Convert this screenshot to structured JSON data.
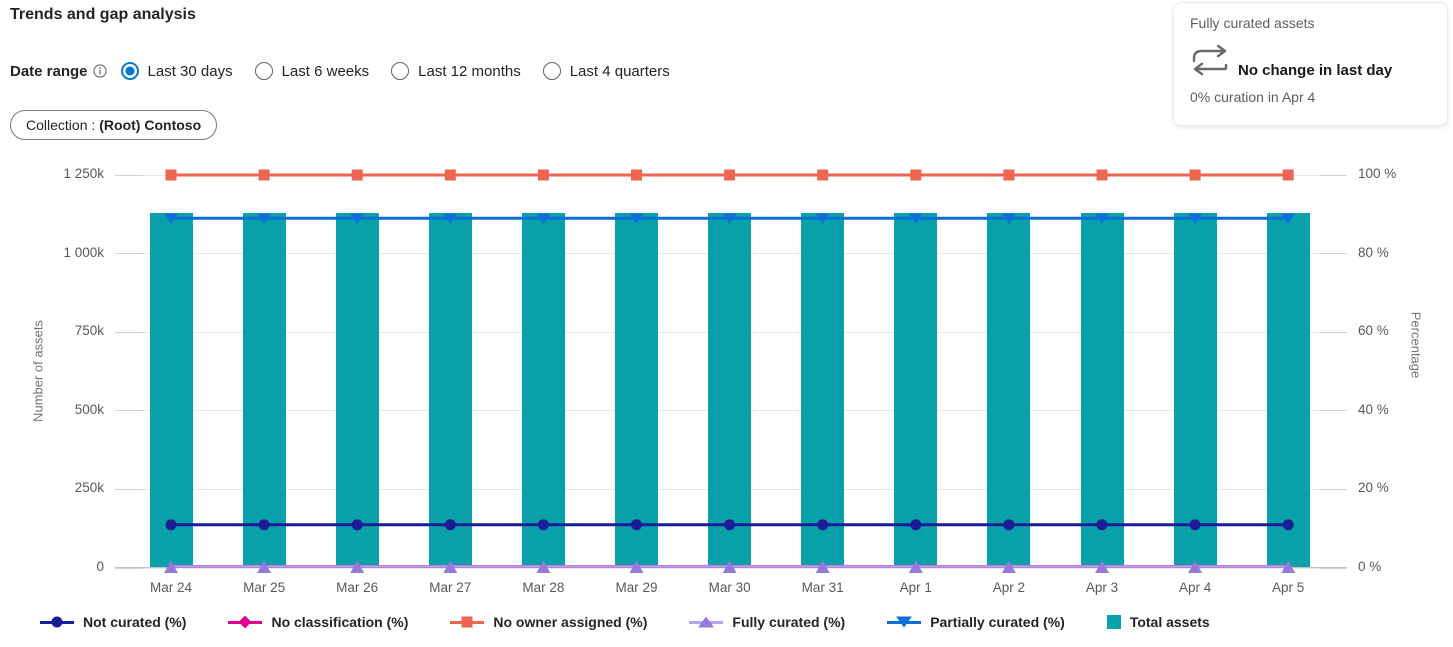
{
  "page": {
    "title": "Trends and gap analysis"
  },
  "date_range": {
    "label": "Date range",
    "info_icon": "info-circle-icon",
    "options": [
      {
        "label": "Last 30 days",
        "selected": true
      },
      {
        "label": "Last 6 weeks",
        "selected": false
      },
      {
        "label": "Last 12 months",
        "selected": false
      },
      {
        "label": "Last 4 quarters",
        "selected": false
      }
    ]
  },
  "filters": {
    "collection_chip": {
      "prefix": "Collection :",
      "value": "(Root) Contoso"
    }
  },
  "summary_card": {
    "title": "Fully curated assets",
    "icon": "swap-arrows-icon",
    "headline": "No change in last day",
    "subtext": "0% curation in Apr 4"
  },
  "chart_data": {
    "type": "bar",
    "subtype": "combo-bar-line",
    "title": "",
    "categories": [
      "Mar 24",
      "Mar 25",
      "Mar 26",
      "Mar 27",
      "Mar 28",
      "Mar 29",
      "Mar 30",
      "Mar 31",
      "Apr 1",
      "Apr 2",
      "Apr 3",
      "Apr 4",
      "Apr 5"
    ],
    "left_axis": {
      "label": "Number of assets",
      "min": 0,
      "max": 1250000,
      "ticks": [
        "1 250k",
        "1 000k",
        "750k",
        "500k",
        "250k",
        "0"
      ]
    },
    "right_axis": {
      "label": "Percentage",
      "min": 0,
      "max": 100,
      "ticks": [
        "100 %",
        "80 %",
        "60 %",
        "40 %",
        "20 %",
        "0 %"
      ]
    },
    "grid": true,
    "legend_position": "bottom",
    "series": [
      {
        "name": "Total assets",
        "type": "bar",
        "axis": "left",
        "color": "#08A1AA",
        "values": [
          1130000,
          1130000,
          1130000,
          1130000,
          1130000,
          1130000,
          1130000,
          1130000,
          1130000,
          1130000,
          1130000,
          1130000,
          1130000
        ]
      },
      {
        "name": "No classification (%)",
        "type": "line",
        "marker": "diamond",
        "axis": "right",
        "color": "#E3008C",
        "occluded": true,
        "values": [
          0,
          0,
          0,
          0,
          0,
          0,
          0,
          0,
          0,
          0,
          0,
          0,
          0
        ]
      },
      {
        "name": "No owner assigned (%)",
        "type": "line",
        "marker": "square",
        "axis": "right",
        "color": "#EE6550",
        "values": [
          100,
          100,
          100,
          100,
          100,
          100,
          100,
          100,
          100,
          100,
          100,
          100,
          100
        ]
      },
      {
        "name": "Partially curated (%)",
        "type": "line",
        "marker": "triangle-down",
        "axis": "right",
        "color": "#0E6FD6",
        "values": [
          89,
          89,
          89,
          89,
          89,
          89,
          89,
          89,
          89,
          89,
          89,
          89,
          89
        ]
      },
      {
        "name": "Not curated (%)",
        "type": "line",
        "marker": "circle",
        "axis": "right",
        "color": "#1C1C96",
        "values": [
          11,
          11,
          11,
          11,
          11,
          11,
          11,
          11,
          11,
          11,
          11,
          11,
          11
        ]
      },
      {
        "name": "Fully curated (%)",
        "type": "line",
        "marker": "triangle-up",
        "axis": "right",
        "color": "#9579DC",
        "line_color": "#B3A5EE",
        "values": [
          0,
          0,
          0,
          0,
          0,
          0,
          0,
          0,
          0,
          0,
          0,
          0,
          0
        ]
      }
    ],
    "legend": [
      {
        "label": "Not curated (%)",
        "marker": "circle",
        "color": "#1C1C96"
      },
      {
        "label": "No classification (%)",
        "marker": "diamond",
        "color": "#E3008C"
      },
      {
        "label": "No owner assigned (%)",
        "marker": "square",
        "color": "#EE6550"
      },
      {
        "label": "Fully curated (%)",
        "marker": "triangle-up",
        "color": "#9579DC",
        "line_color": "#B3A5EE"
      },
      {
        "label": "Partially curated (%)",
        "marker": "triangle-down",
        "color": "#0E6FD6"
      },
      {
        "label": "Total assets",
        "marker": "swatch",
        "color": "#08A1AA"
      }
    ]
  }
}
